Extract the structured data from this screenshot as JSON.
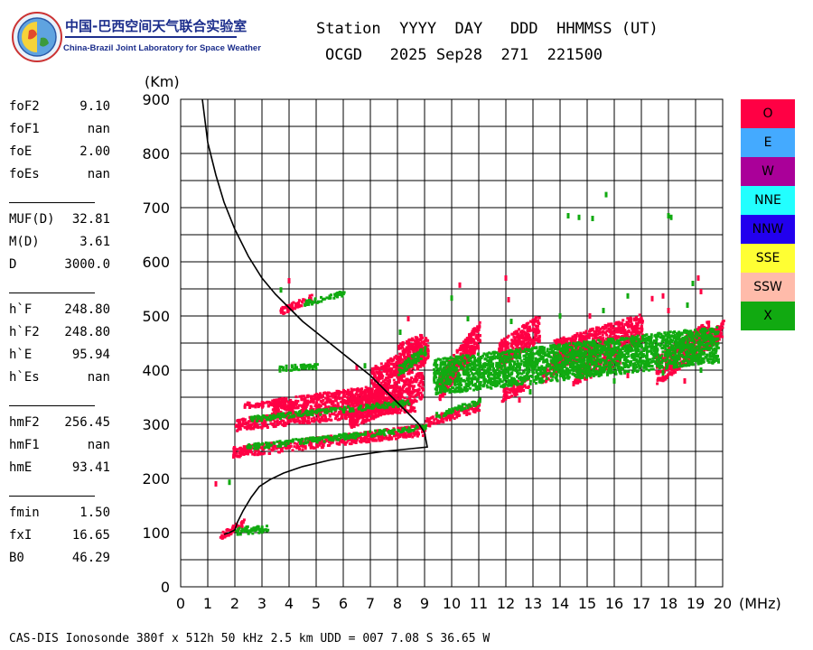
{
  "logo": {
    "title_cn": "中国-巴西空间天气联合实验室",
    "title_en": "China-Brazil Joint Laboratory for Space Weather"
  },
  "header": {
    "labels_line": "Station  YYYY  DAY   DDD  HHMMSS (UT)",
    "values_line": "OCGD   2025 Sep28  271  221500"
  },
  "params": {
    "group1": [
      {
        "name": "foF2",
        "value": "9.10"
      },
      {
        "name": "foF1",
        "value": "nan"
      },
      {
        "name": "foE",
        "value": "2.00"
      },
      {
        "name": "foEs",
        "value": "nan"
      }
    ],
    "group2": [
      {
        "name": "MUF(D)",
        "value": "32.81"
      },
      {
        "name": "M(D)",
        "value": "3.61"
      },
      {
        "name": "D",
        "value": "3000.0"
      }
    ],
    "group3": [
      {
        "name": "h`F",
        "value": "248.80"
      },
      {
        "name": "h`F2",
        "value": "248.80"
      },
      {
        "name": "h`E",
        "value": "95.94"
      },
      {
        "name": "h`Es",
        "value": "nan"
      }
    ],
    "group4": [
      {
        "name": "hmF2",
        "value": "256.45"
      },
      {
        "name": "hmF1",
        "value": "nan"
      },
      {
        "name": "hmE",
        "value": "93.41"
      }
    ],
    "group5": [
      {
        "name": "fmin",
        "value": "1.50"
      },
      {
        "name": "fxI",
        "value": "16.65"
      },
      {
        "name": "B0",
        "value": "46.29"
      }
    ]
  },
  "legend": [
    {
      "label": "O",
      "color": "#ff0044"
    },
    {
      "label": "E",
      "color": "#44aaff"
    },
    {
      "label": "W",
      "color": "#aa0099"
    },
    {
      "label": "NNE",
      "color": "#22ffff"
    },
    {
      "label": "NNW",
      "color": "#2200ee"
    },
    {
      "label": "SSE",
      "color": "#ffff33"
    },
    {
      "label": "SSW",
      "color": "#ffbbaa"
    },
    {
      "label": "X",
      "color": "#11aa11"
    }
  ],
  "footer": {
    "text": "CAS-DIS Ionosonde 380f x 512h 50 kHz 2.5 km UDD = 007 7.08 S 36.65 W"
  },
  "chart_data": {
    "type": "scatter",
    "xlabel": "(MHz)",
    "ylabel": "(Km)",
    "xlim": [
      0,
      20
    ],
    "ylim": [
      0,
      900
    ],
    "x_major_ticks": [
      0,
      1,
      2,
      3,
      4,
      5,
      6,
      7,
      8,
      9,
      10,
      11,
      12,
      13,
      14,
      15,
      16,
      17,
      18,
      19,
      20
    ],
    "y_major_ticks": [
      0,
      100,
      200,
      300,
      400,
      500,
      600,
      700,
      800,
      900
    ],
    "grid": true,
    "colors": {
      "O": "#ff0044",
      "X": "#11aa11",
      "profile": "#000000"
    },
    "profile_curve": {
      "name": "",
      "points": [
        [
          0.8,
          900
        ],
        [
          1.0,
          820
        ],
        [
          1.3,
          760
        ],
        [
          1.6,
          710
        ],
        [
          2.0,
          660
        ],
        [
          2.5,
          610
        ],
        [
          3.0,
          570
        ],
        [
          3.5,
          540
        ],
        [
          4.0,
          515
        ],
        [
          4.5,
          490
        ],
        [
          5.0,
          470
        ],
        [
          5.5,
          450
        ],
        [
          6.0,
          430
        ],
        [
          6.5,
          410
        ],
        [
          7.0,
          390
        ],
        [
          7.5,
          365
        ],
        [
          8.0,
          340
        ],
        [
          8.5,
          315
        ],
        [
          8.8,
          300
        ],
        [
          9.0,
          285
        ],
        [
          9.1,
          258
        ],
        [
          8.5,
          255
        ],
        [
          7.5,
          250
        ],
        [
          6.5,
          243
        ],
        [
          5.5,
          234
        ],
        [
          4.5,
          222
        ],
        [
          3.8,
          210
        ],
        [
          3.3,
          198
        ],
        [
          2.9,
          185
        ],
        [
          2.6,
          165
        ],
        [
          2.3,
          140
        ],
        [
          2.1,
          120
        ],
        [
          2.0,
          105
        ],
        [
          1.8,
          100
        ],
        [
          1.6,
          97
        ]
      ]
    },
    "traces": [
      {
        "mode": "O",
        "x0": 1.9,
        "y0": 250,
        "x1": 9.0,
        "y1": 292,
        "thickness": 12
      },
      {
        "mode": "O",
        "x0": 2.0,
        "y0": 301,
        "x1": 8.6,
        "y1": 338,
        "thickness": 14
      },
      {
        "mode": "O",
        "x0": 3.3,
        "y0": 331,
        "x1": 7.6,
        "y1": 360,
        "thickness": 20
      },
      {
        "mode": "O",
        "x0": 9.0,
        "y0": 305,
        "x1": 11.0,
        "y1": 336,
        "thickness": 10
      },
      {
        "mode": "O",
        "x0": 2.3,
        "y0": 338,
        "x1": 4.2,
        "y1": 340,
        "thickness": 6
      },
      {
        "mode": "O",
        "x0": 6.2,
        "y0": 320,
        "x1": 8.9,
        "y1": 375,
        "thickness": 30
      },
      {
        "mode": "O",
        "x0": 7.0,
        "y0": 380,
        "x1": 9.1,
        "y1": 440,
        "thickness": 30
      },
      {
        "mode": "O",
        "x0": 8.0,
        "y0": 440,
        "x1": 8.9,
        "y1": 460,
        "thickness": 12
      },
      {
        "mode": "O",
        "x0": 9.5,
        "y0": 370,
        "x1": 11.0,
        "y1": 470,
        "thickness": 30
      },
      {
        "mode": "O",
        "x0": 11.7,
        "y0": 430,
        "x1": 13.2,
        "y1": 480,
        "thickness": 30
      },
      {
        "mode": "O",
        "x0": 11.8,
        "y0": 355,
        "x1": 12.8,
        "y1": 380,
        "thickness": 14
      },
      {
        "mode": "O",
        "x0": 13.3,
        "y0": 390,
        "x1": 14.2,
        "y1": 430,
        "thickness": 18
      },
      {
        "mode": "O",
        "x0": 13.7,
        "y0": 430,
        "x1": 17.0,
        "y1": 480,
        "thickness": 32
      },
      {
        "mode": "O",
        "x0": 14.5,
        "y0": 390,
        "x1": 16.2,
        "y1": 430,
        "thickness": 18
      },
      {
        "mode": "O",
        "x0": 17.5,
        "y0": 400,
        "x1": 19.5,
        "y1": 470,
        "thickness": 32
      },
      {
        "mode": "O",
        "x0": 19.3,
        "y0": 450,
        "x1": 20.0,
        "y1": 480,
        "thickness": 18
      },
      {
        "mode": "O",
        "x0": 3.6,
        "y0": 510,
        "x1": 4.8,
        "y1": 535,
        "thickness": 8
      },
      {
        "mode": "O",
        "x0": 1.4,
        "y0": 95,
        "x1": 2.3,
        "y1": 120,
        "thickness": 8
      },
      {
        "mode": "X",
        "x0": 2.4,
        "y0": 260,
        "x1": 9.0,
        "y1": 296,
        "thickness": 6
      },
      {
        "mode": "X",
        "x0": 2.5,
        "y0": 312,
        "x1": 8.4,
        "y1": 342,
        "thickness": 6
      },
      {
        "mode": "X",
        "x0": 3.6,
        "y0": 405,
        "x1": 5.0,
        "y1": 410,
        "thickness": 6
      },
      {
        "mode": "X",
        "x0": 4.5,
        "y0": 525,
        "x1": 6.0,
        "y1": 545,
        "thickness": 6
      },
      {
        "mode": "X",
        "x0": 2.0,
        "y0": 105,
        "x1": 3.2,
        "y1": 110,
        "thickness": 8
      },
      {
        "mode": "X",
        "x0": 9.4,
        "y0": 318,
        "x1": 11.0,
        "y1": 345,
        "thickness": 6
      },
      {
        "mode": "X",
        "x0": 9.3,
        "y0": 390,
        "x1": 19.8,
        "y1": 450,
        "thickness": 40
      },
      {
        "mode": "X",
        "x0": 8.0,
        "y0": 400,
        "x1": 9.0,
        "y1": 440,
        "thickness": 12
      }
    ],
    "points": [
      {
        "mode": "O",
        "x": 1.3,
        "y": 190
      },
      {
        "mode": "X",
        "x": 1.8,
        "y": 193
      },
      {
        "mode": "O",
        "x": 4.0,
        "y": 565
      },
      {
        "mode": "X",
        "x": 14.3,
        "y": 685
      },
      {
        "mode": "X",
        "x": 14.7,
        "y": 682
      },
      {
        "mode": "X",
        "x": 15.2,
        "y": 680
      },
      {
        "mode": "X",
        "x": 15.7,
        "y": 724
      },
      {
        "mode": "X",
        "x": 18.0,
        "y": 685
      },
      {
        "mode": "X",
        "x": 18.1,
        "y": 682
      },
      {
        "mode": "O",
        "x": 10.3,
        "y": 557
      },
      {
        "mode": "O",
        "x": 12.0,
        "y": 570
      },
      {
        "mode": "X",
        "x": 10.0,
        "y": 533
      },
      {
        "mode": "O",
        "x": 12.1,
        "y": 530
      },
      {
        "mode": "O",
        "x": 17.4,
        "y": 532
      },
      {
        "mode": "O",
        "x": 17.8,
        "y": 537
      },
      {
        "mode": "X",
        "x": 18.9,
        "y": 560
      },
      {
        "mode": "O",
        "x": 19.2,
        "y": 545
      },
      {
        "mode": "O",
        "x": 19.1,
        "y": 570
      },
      {
        "mode": "X",
        "x": 16.5,
        "y": 537
      },
      {
        "mode": "O",
        "x": 8.4,
        "y": 495
      },
      {
        "mode": "X",
        "x": 10.6,
        "y": 495
      },
      {
        "mode": "X",
        "x": 12.2,
        "y": 490
      },
      {
        "mode": "X",
        "x": 14.0,
        "y": 500
      },
      {
        "mode": "O",
        "x": 15.1,
        "y": 500
      },
      {
        "mode": "X",
        "x": 15.6,
        "y": 510
      },
      {
        "mode": "X",
        "x": 18.7,
        "y": 520
      },
      {
        "mode": "O",
        "x": 18.0,
        "y": 510
      },
      {
        "mode": "X",
        "x": 8.1,
        "y": 470
      },
      {
        "mode": "O",
        "x": 12.5,
        "y": 345
      },
      {
        "mode": "X",
        "x": 12.9,
        "y": 360
      },
      {
        "mode": "O",
        "x": 14.5,
        "y": 375
      },
      {
        "mode": "X",
        "x": 16.0,
        "y": 380
      },
      {
        "mode": "O",
        "x": 16.5,
        "y": 390
      },
      {
        "mode": "X",
        "x": 17.8,
        "y": 395
      },
      {
        "mode": "O",
        "x": 18.6,
        "y": 380
      },
      {
        "mode": "X",
        "x": 19.2,
        "y": 400
      },
      {
        "mode": "O",
        "x": 6.5,
        "y": 405
      },
      {
        "mode": "X",
        "x": 6.8,
        "y": 408
      },
      {
        "mode": "O",
        "x": 7.2,
        "y": 405
      },
      {
        "mode": "X",
        "x": 3.7,
        "y": 548
      }
    ]
  }
}
